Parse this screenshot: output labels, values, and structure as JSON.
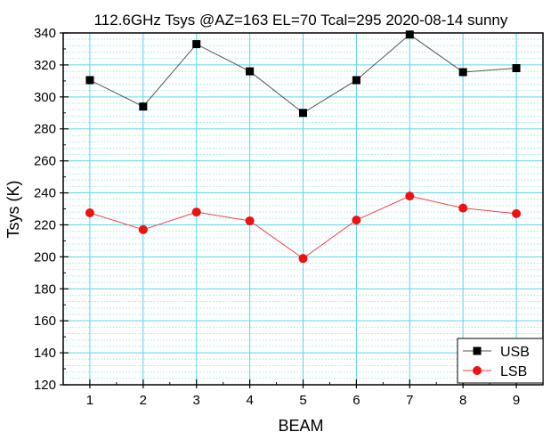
{
  "chart_data": {
    "type": "line",
    "title": "112.6GHz Tsys @AZ=163 EL=70 Tcal=295 2020-08-14 sunny",
    "xlabel": "BEAM",
    "ylabel": "Tsys (K)",
    "x": [
      1,
      2,
      3,
      4,
      5,
      6,
      7,
      8,
      9
    ],
    "xlim": [
      0.5,
      9.5
    ],
    "ylim": [
      120,
      340
    ],
    "xticks": [
      1,
      2,
      3,
      4,
      5,
      6,
      7,
      8,
      9
    ],
    "yticks": [
      120,
      140,
      160,
      180,
      200,
      220,
      240,
      260,
      280,
      300,
      320,
      340
    ],
    "grid": true,
    "legend_position": "bottom-right",
    "series": [
      {
        "name": "USB",
        "marker": "square",
        "color": "#000000",
        "line_color": "#555555",
        "values": [
          310.5,
          294,
          333,
          316,
          290,
          310.5,
          339,
          315.5,
          318
        ]
      },
      {
        "name": "LSB",
        "marker": "circle",
        "color": "#ee1111",
        "line_color": "#ee4444",
        "values": [
          227.5,
          217,
          228,
          222.5,
          199,
          223,
          238,
          230.5,
          227
        ]
      }
    ]
  }
}
